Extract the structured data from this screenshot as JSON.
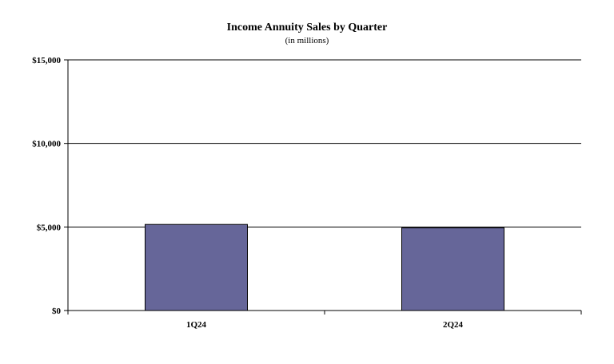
{
  "chart_data": {
    "type": "bar",
    "title": "Income Annuity Sales by Quarter",
    "subtitle": "(in millions)",
    "categories": [
      "1Q24",
      "2Q24"
    ],
    "values": [
      5150,
      4950
    ],
    "ylim": [
      0,
      15000
    ],
    "yticks": [
      0,
      5000,
      10000,
      15000
    ],
    "ytick_labels": [
      "$0",
      "$5,000",
      "$10,000",
      "$15,000"
    ],
    "xlabel": "",
    "ylabel": "",
    "grid": true,
    "bar_color": "#666699",
    "bar_edge_color": "#000000"
  }
}
